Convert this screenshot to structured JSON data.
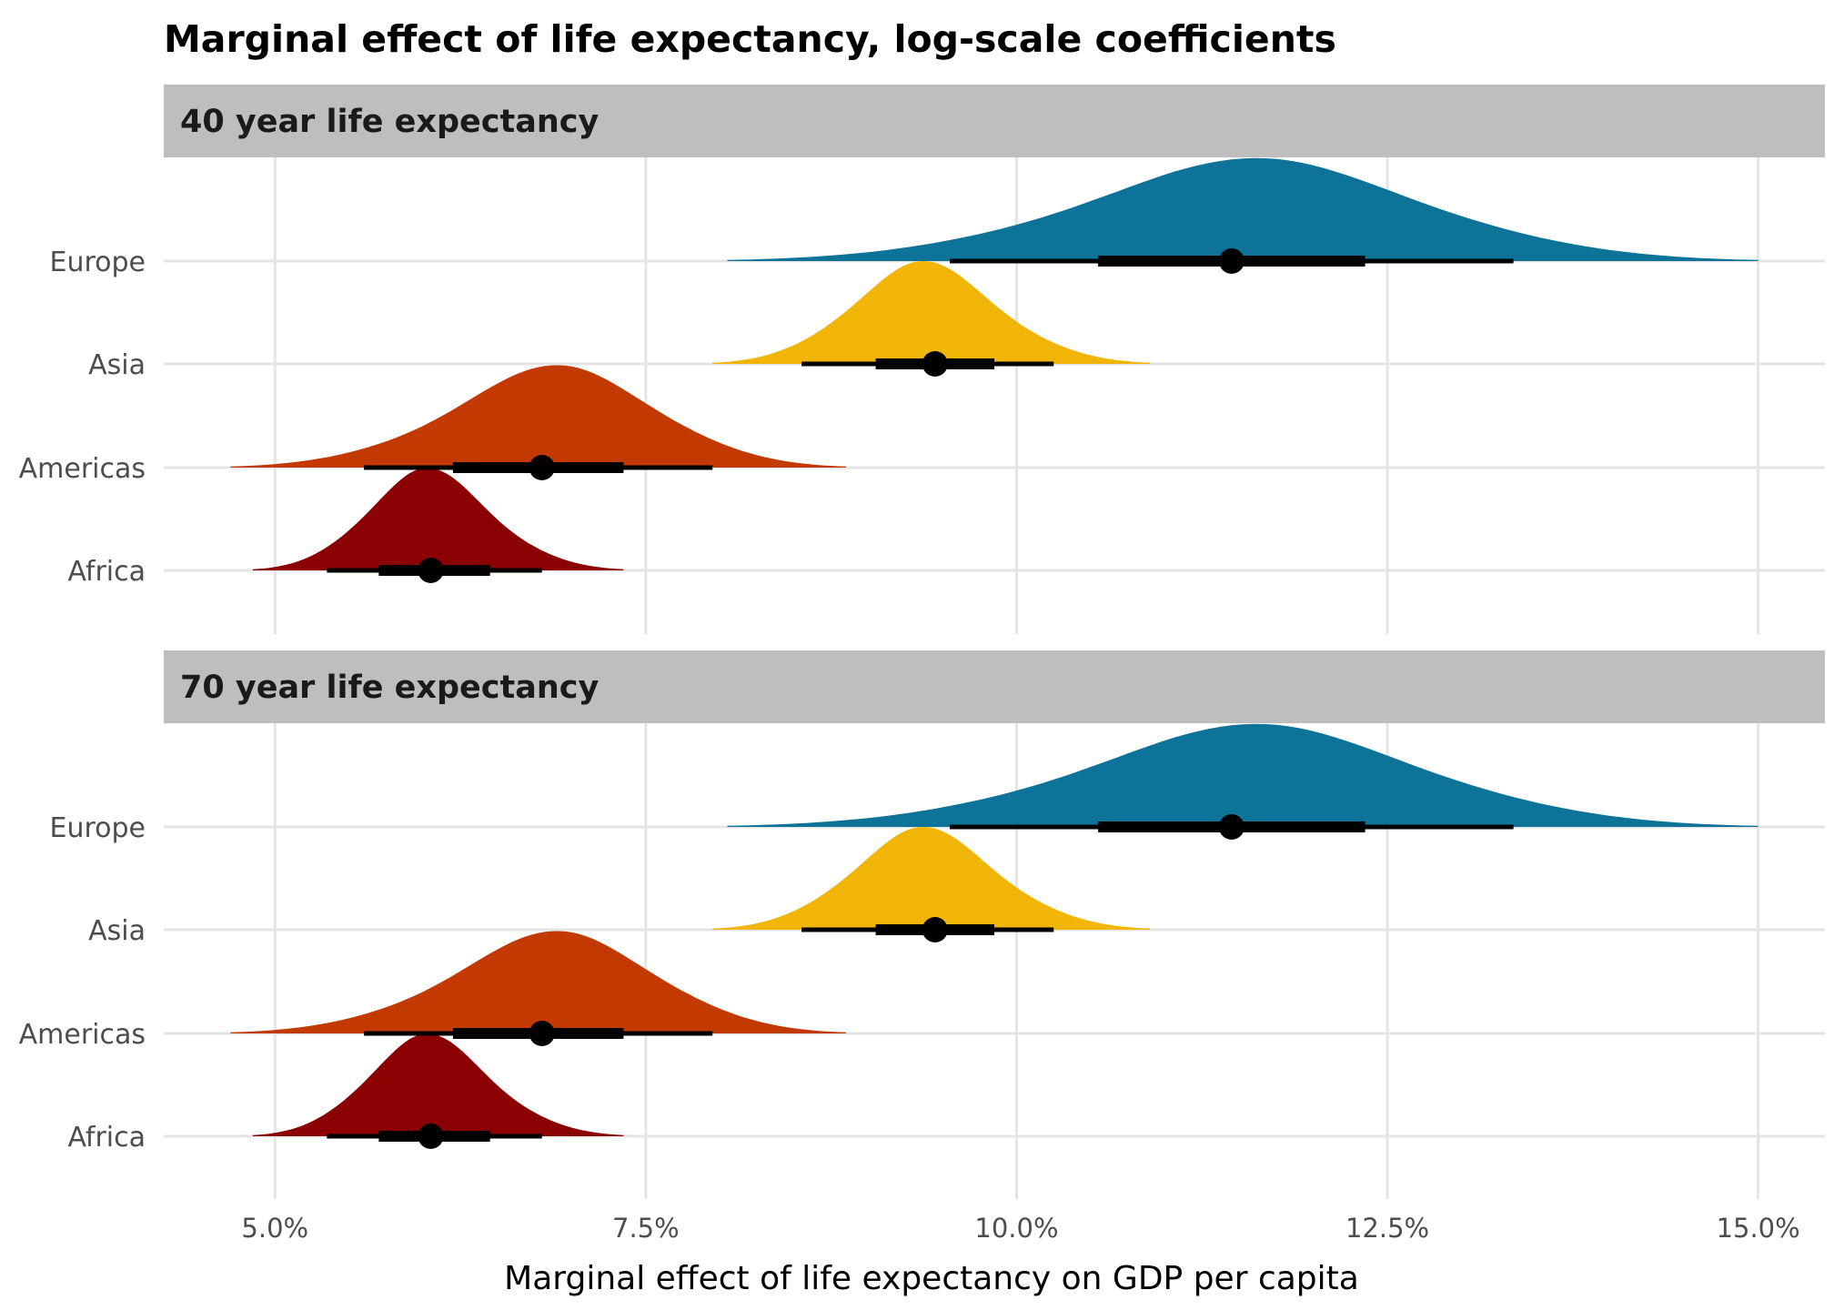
{
  "chart_data": {
    "type": "halfeye",
    "title": "Marginal effect of life expectancy, log-scale coefficients",
    "xlabel": "Marginal effect of life expectancy on GDP per capita",
    "ylabel": "",
    "xlim": [
      4.25,
      15.45
    ],
    "x_ticks": [
      5.0,
      7.5,
      10.0,
      12.5,
      15.0
    ],
    "x_tick_labels": [
      "5.0%",
      "7.5%",
      "10.0%",
      "12.5%",
      "15.0%"
    ],
    "categories": [
      "Europe",
      "Asia",
      "Americas",
      "Africa"
    ],
    "grid": true,
    "panels": [
      {
        "label": "40 year life expectancy",
        "series": [
          {
            "name": "Europe",
            "color": "#0e7399",
            "median": 11.45,
            "inner_interval": [
              10.55,
              12.35
            ],
            "outer_interval": [
              9.55,
              13.35
            ],
            "density_range": [
              8.05,
              15.0
            ],
            "peak": 11.65
          },
          {
            "name": "Asia",
            "color": "#f1b507",
            "median": 9.45,
            "inner_interval": [
              9.05,
              9.85
            ],
            "outer_interval": [
              8.55,
              10.25
            ],
            "density_range": [
              7.95,
              10.9
            ],
            "peak": 9.35
          },
          {
            "name": "Americas",
            "color": "#c23a02",
            "median": 6.8,
            "inner_interval": [
              6.2,
              7.35
            ],
            "outer_interval": [
              5.6,
              7.95
            ],
            "density_range": [
              4.7,
              8.85
            ],
            "peak": 6.95
          },
          {
            "name": "Africa",
            "color": "#8b0000",
            "median": 6.05,
            "inner_interval": [
              5.7,
              6.45
            ],
            "outer_interval": [
              5.35,
              6.8
            ],
            "density_range": [
              4.85,
              7.35
            ],
            "peak": 6.0
          }
        ]
      },
      {
        "label": "70 year life expectancy",
        "series": [
          {
            "name": "Europe",
            "color": "#0e7399",
            "median": 11.45,
            "inner_interval": [
              10.55,
              12.35
            ],
            "outer_interval": [
              9.55,
              13.35
            ],
            "density_range": [
              8.05,
              15.0
            ],
            "peak": 11.65
          },
          {
            "name": "Asia",
            "color": "#f1b507",
            "median": 9.45,
            "inner_interval": [
              9.05,
              9.85
            ],
            "outer_interval": [
              8.55,
              10.25
            ],
            "density_range": [
              7.95,
              10.9
            ],
            "peak": 9.35
          },
          {
            "name": "Americas",
            "color": "#c23a02",
            "median": 6.8,
            "inner_interval": [
              6.2,
              7.35
            ],
            "outer_interval": [
              5.6,
              7.95
            ],
            "density_range": [
              4.7,
              8.85
            ],
            "peak": 6.95
          },
          {
            "name": "Africa",
            "color": "#8b0000",
            "median": 6.05,
            "inner_interval": [
              5.7,
              6.45
            ],
            "outer_interval": [
              5.35,
              6.8
            ],
            "density_range": [
              4.85,
              7.35
            ],
            "peak": 6.0
          }
        ]
      }
    ],
    "colors": {
      "strip_background": "#bebebe",
      "grid": "#e4e4e4",
      "interval": "#000000"
    }
  }
}
